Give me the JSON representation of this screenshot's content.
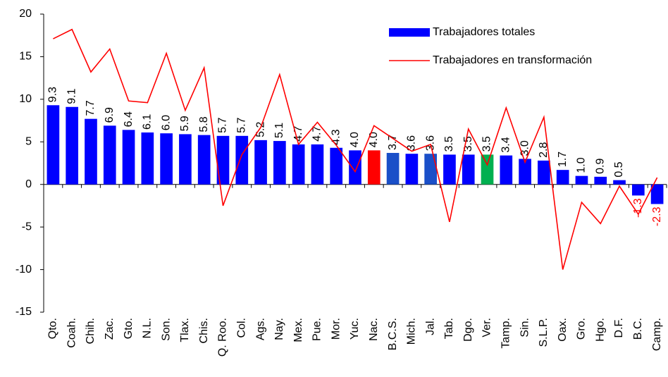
{
  "chart_data": {
    "type": "bar_line",
    "categories": [
      "Qto.",
      "Coah.",
      "Chih.",
      "Zac.",
      "Gto.",
      "N.L.",
      "Son.",
      "Tlax.",
      "Chis.",
      "Q. Roo.",
      "Col.",
      "Ags.",
      "Nay.",
      "Mex.",
      "Pue.",
      "Mor.",
      "Yuc.",
      "Nac.",
      "B.C.S.",
      "Mich.",
      "Jal.",
      "Tab.",
      "Dgo.",
      "Ver.",
      "Tamp.",
      "Sin.",
      "S.L.P.",
      "Oax.",
      "Gro.",
      "Hgo.",
      "D.F.",
      "B.C.",
      "Camp."
    ],
    "series": [
      {
        "name": "Trabajadores totales",
        "type": "bar",
        "color": "#0000ff",
        "values": [
          9.3,
          9.1,
          7.7,
          6.9,
          6.4,
          6.1,
          6.0,
          5.9,
          5.8,
          5.7,
          5.7,
          5.2,
          5.1,
          4.7,
          4.7,
          4.3,
          4.0,
          4.0,
          3.7,
          3.6,
          3.6,
          3.5,
          3.5,
          3.5,
          3.4,
          3.0,
          2.8,
          1.7,
          1.0,
          0.9,
          0.5,
          -1.3,
          -2.3
        ],
        "value_labels": [
          "9.3",
          "9.1",
          "7.7",
          "6.9",
          "6.4",
          "6.1",
          "6.0",
          "5.9",
          "5.8",
          "5.7",
          "5.7",
          "5.2",
          "5.1",
          "4.7",
          "4.7",
          "4.3",
          "4.0",
          "4.0",
          "3.7",
          "3.6",
          "3.6",
          "3.5",
          "3.5",
          "3.5",
          "3.4",
          "3.0",
          "2.8",
          "1.7",
          "1.0",
          "0.9",
          "0.5",
          "-1.3",
          "-2.3"
        ],
        "colors": [
          "#0000ff",
          "#0000ff",
          "#0000ff",
          "#0000ff",
          "#0000ff",
          "#0000ff",
          "#0000ff",
          "#0000ff",
          "#0000ff",
          "#0000ff",
          "#0000ff",
          "#0000ff",
          "#0000ff",
          "#0000ff",
          "#0000ff",
          "#0000ff",
          "#0000ff",
          "#ff0000",
          "#1a4fc8",
          "#0000ff",
          "#1a4fc8",
          "#0000ff",
          "#0000ff",
          "#00b050",
          "#0000ff",
          "#0000ff",
          "#0000ff",
          "#0000ff",
          "#0000ff",
          "#0000ff",
          "#0000ff",
          "#0000ff",
          "#0000ff"
        ],
        "negative_label_color": "#ff0000"
      },
      {
        "name": "Trabajadores en transformación",
        "type": "line",
        "color": "#ff0000",
        "values": [
          17.1,
          18.2,
          13.2,
          15.9,
          9.8,
          9.6,
          15.4,
          8.7,
          13.7,
          -2.5,
          3.5,
          6.7,
          12.9,
          4.7,
          7.3,
          4.6,
          1.5,
          6.9,
          5.4,
          3.9,
          4.7,
          -4.4,
          6.5,
          2.3,
          9.0,
          2.6,
          7.9,
          -10.0,
          -2.1,
          -4.6,
          -0.2,
          -3.5,
          0.8
        ]
      }
    ],
    "ylim": [
      -15,
      20
    ],
    "yticks": [
      -15,
      -10,
      -5,
      0,
      5,
      10,
      15,
      20
    ],
    "legend": "top-right"
  }
}
